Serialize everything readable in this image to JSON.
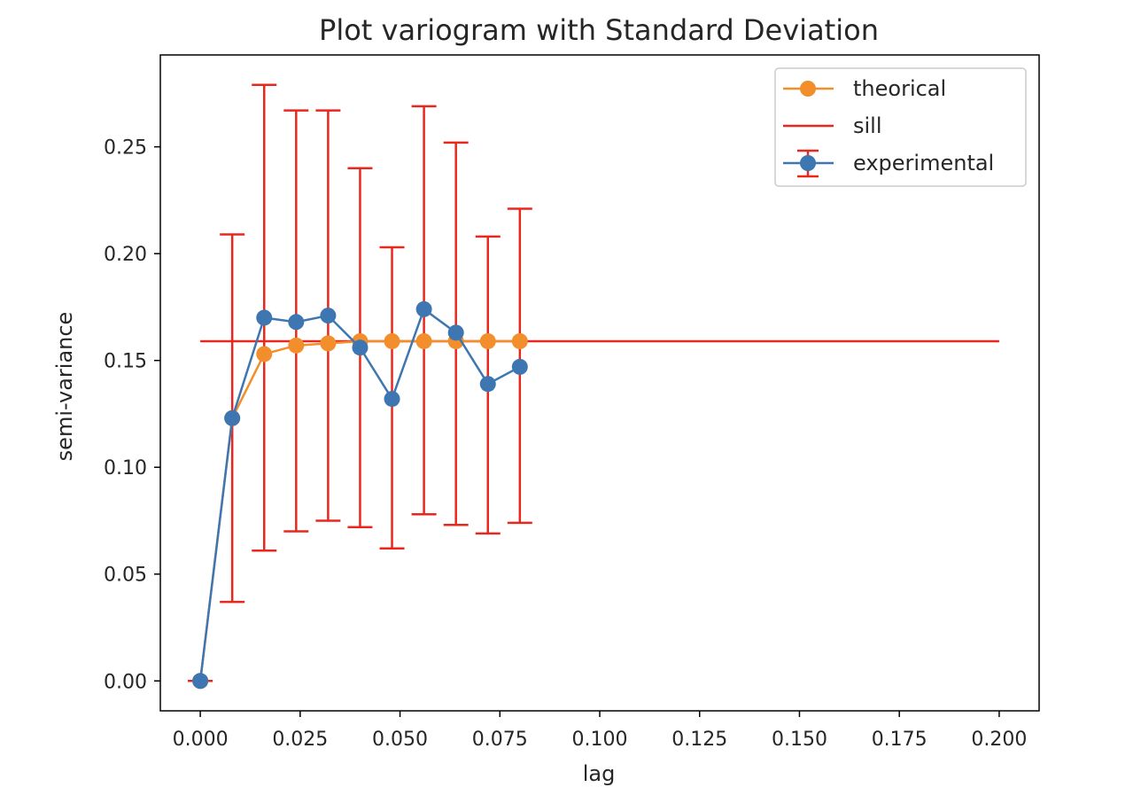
{
  "chart_data": {
    "type": "line",
    "title": "Plot variogram with Standard Deviation",
    "xlabel": "lag",
    "ylabel": "semi-variance",
    "xlim": [
      -0.01,
      0.21
    ],
    "ylim": [
      -0.014,
      0.293
    ],
    "x_ticks": [
      0.0,
      0.025,
      0.05,
      0.075,
      0.1,
      0.125,
      0.15,
      0.175,
      0.2
    ],
    "x_tick_labels": [
      "0.000",
      "0.025",
      "0.050",
      "0.075",
      "0.100",
      "0.125",
      "0.150",
      "0.175",
      "0.200"
    ],
    "y_ticks": [
      0.0,
      0.05,
      0.1,
      0.15,
      0.2,
      0.25
    ],
    "y_tick_labels": [
      "0.00",
      "0.05",
      "0.10",
      "0.15",
      "0.20",
      "0.25"
    ],
    "grid": false,
    "legend_position": "top-right",
    "colors": {
      "theorical": "#f28e2b",
      "sill": "#e8281e",
      "experimental": "#3d76b1",
      "errorbar": "#e8281e"
    },
    "series": [
      {
        "name": "theorical",
        "kind": "line-marker",
        "x": [
          0.0,
          0.008,
          0.016,
          0.024,
          0.032,
          0.04,
          0.048,
          0.056,
          0.064,
          0.072,
          0.08
        ],
        "y": [
          0.0,
          0.123,
          0.153,
          0.157,
          0.158,
          0.159,
          0.159,
          0.159,
          0.159,
          0.159,
          0.159
        ]
      },
      {
        "name": "sill",
        "kind": "hline",
        "y": 0.159,
        "x_range": [
          0.0,
          0.2
        ]
      },
      {
        "name": "experimental",
        "kind": "errorbar",
        "x": [
          0.0,
          0.008,
          0.016,
          0.024,
          0.032,
          0.04,
          0.048,
          0.056,
          0.064,
          0.072,
          0.08
        ],
        "y": [
          0.0,
          0.123,
          0.17,
          0.168,
          0.171,
          0.156,
          0.132,
          0.174,
          0.163,
          0.139,
          0.147
        ],
        "yerr_low": [
          0.0,
          0.037,
          0.061,
          0.07,
          0.075,
          0.072,
          0.062,
          0.078,
          0.073,
          0.069,
          0.074
        ],
        "yerr_high": [
          0.0,
          0.209,
          0.279,
          0.267,
          0.267,
          0.24,
          0.203,
          0.269,
          0.252,
          0.208,
          0.221
        ]
      }
    ],
    "legend": [
      "theorical",
      "sill",
      "experimental"
    ]
  }
}
